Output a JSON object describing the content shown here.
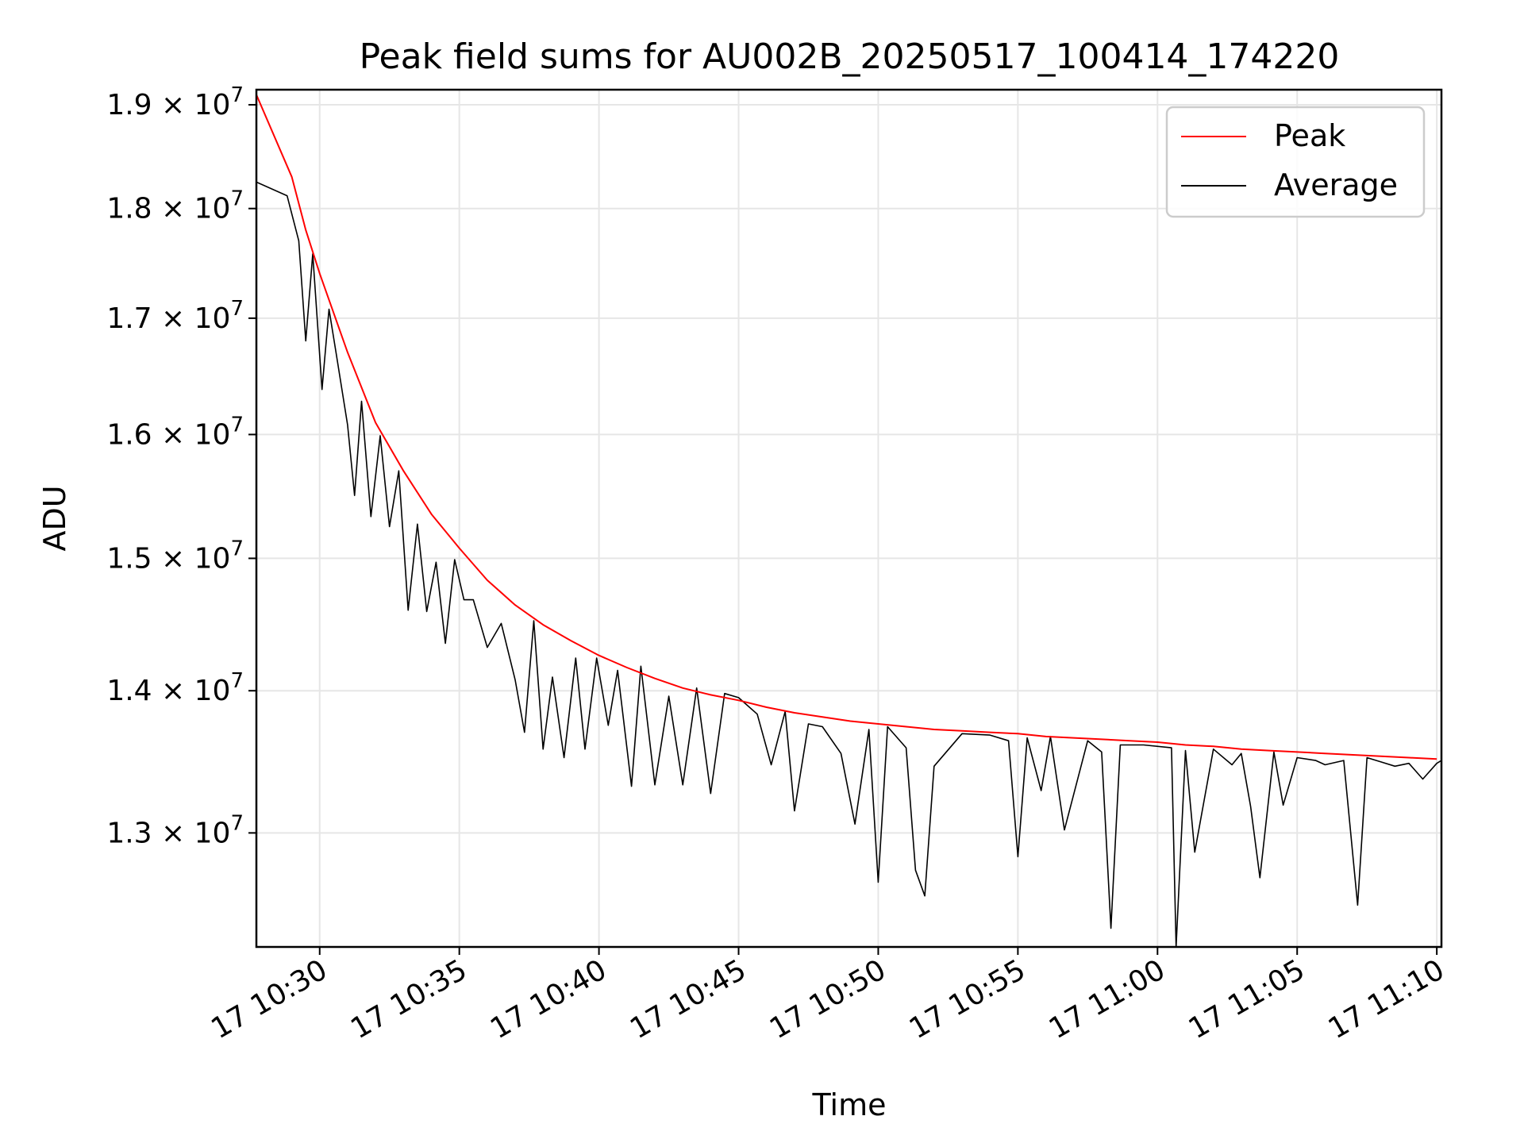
{
  "chart_data": {
    "type": "line",
    "title": "Peak field sums for AU002B_20250517_100414_174220",
    "xlabel": "Time",
    "ylabel": "ADU",
    "xlim": [
      "2025-05-17T10:27:44",
      "2025-05-17T11:10:10"
    ],
    "ylim": [
      12250000,
      19150000
    ],
    "yscale": "log",
    "grid": true,
    "legend_position": "top-right",
    "x_ticks": [
      {
        "value": "2025-05-17T10:30:00",
        "label": "17 10:30"
      },
      {
        "value": "2025-05-17T10:35:00",
        "label": "17 10:35"
      },
      {
        "value": "2025-05-17T10:40:00",
        "label": "17 10:40"
      },
      {
        "value": "2025-05-17T10:45:00",
        "label": "17 10:45"
      },
      {
        "value": "2025-05-17T10:50:00",
        "label": "17 10:50"
      },
      {
        "value": "2025-05-17T10:55:00",
        "label": "17 10:55"
      },
      {
        "value": "2025-05-17T11:00:00",
        "label": "17 11:00"
      },
      {
        "value": "2025-05-17T11:05:00",
        "label": "17 11:05"
      },
      {
        "value": "2025-05-17T11:10:00",
        "label": "17 11:10"
      }
    ],
    "y_ticks": [
      {
        "value": 13000000,
        "mantissa": "1.3",
        "exponent": "7"
      },
      {
        "value": 14000000,
        "mantissa": "1.4",
        "exponent": "7"
      },
      {
        "value": 15000000,
        "mantissa": "1.5",
        "exponent": "7"
      },
      {
        "value": 16000000,
        "mantissa": "1.6",
        "exponent": "7"
      },
      {
        "value": 17000000,
        "mantissa": "1.7",
        "exponent": "7"
      },
      {
        "value": 18000000,
        "mantissa": "1.8",
        "exponent": "7"
      },
      {
        "value": 19000000,
        "mantissa": "1.9",
        "exponent": "7"
      }
    ],
    "series": [
      {
        "name": "Peak",
        "color": "#ff0000",
        "x": [
          "2025-05-17T10:27:44",
          "2025-05-17T10:29:00",
          "2025-05-17T10:29:30",
          "2025-05-17T10:30:00",
          "2025-05-17T10:31:00",
          "2025-05-17T10:32:00",
          "2025-05-17T10:33:00",
          "2025-05-17T10:34:00",
          "2025-05-17T10:35:00",
          "2025-05-17T10:36:00",
          "2025-05-17T10:37:00",
          "2025-05-17T10:38:00",
          "2025-05-17T10:39:00",
          "2025-05-17T10:40:00",
          "2025-05-17T10:41:00",
          "2025-05-17T10:42:00",
          "2025-05-17T10:43:00",
          "2025-05-17T10:44:00",
          "2025-05-17T10:45:00",
          "2025-05-17T10:46:00",
          "2025-05-17T10:47:00",
          "2025-05-17T10:48:00",
          "2025-05-17T10:49:00",
          "2025-05-17T10:50:00",
          "2025-05-17T10:51:00",
          "2025-05-17T10:52:00",
          "2025-05-17T10:53:00",
          "2025-05-17T10:54:00",
          "2025-05-17T10:55:00",
          "2025-05-17T10:56:00",
          "2025-05-17T10:57:00",
          "2025-05-17T10:58:00",
          "2025-05-17T10:59:00",
          "2025-05-17T11:00:00",
          "2025-05-17T11:01:00",
          "2025-05-17T11:02:00",
          "2025-05-17T11:03:00",
          "2025-05-17T11:04:00",
          "2025-05-17T11:05:00",
          "2025-05-17T11:06:00",
          "2025-05-17T11:07:00",
          "2025-05-17T11:08:00",
          "2025-05-17T11:09:00",
          "2025-05-17T11:10:00"
        ],
        "y": [
          19100000,
          18300000,
          17800000,
          17400000,
          16700000,
          16100000,
          15700000,
          15350000,
          15080000,
          14830000,
          14640000,
          14490000,
          14370000,
          14260000,
          14170000,
          14090000,
          14020000,
          13970000,
          13930000,
          13880000,
          13840000,
          13810000,
          13780000,
          13760000,
          13740000,
          13720000,
          13710000,
          13700000,
          13690000,
          13670000,
          13660000,
          13650000,
          13640000,
          13630000,
          13610000,
          13600000,
          13580000,
          13570000,
          13560000,
          13550000,
          13540000,
          13530000,
          13520000,
          13510000
        ]
      },
      {
        "name": "Average",
        "color": "#000000",
        "x": [
          "2025-05-17T10:27:44",
          "2025-05-17T10:28:50",
          "2025-05-17T10:29:15",
          "2025-05-17T10:29:30",
          "2025-05-17T10:29:45",
          "2025-05-17T10:30:05",
          "2025-05-17T10:30:20",
          "2025-05-17T10:30:35",
          "2025-05-17T10:31:00",
          "2025-05-17T10:31:15",
          "2025-05-17T10:31:30",
          "2025-05-17T10:31:50",
          "2025-05-17T10:32:10",
          "2025-05-17T10:32:30",
          "2025-05-17T10:32:50",
          "2025-05-17T10:33:10",
          "2025-05-17T10:33:30",
          "2025-05-17T10:33:50",
          "2025-05-17T10:34:10",
          "2025-05-17T10:34:30",
          "2025-05-17T10:34:50",
          "2025-05-17T10:35:10",
          "2025-05-17T10:35:30",
          "2025-05-17T10:36:00",
          "2025-05-17T10:36:30",
          "2025-05-17T10:37:00",
          "2025-05-17T10:37:20",
          "2025-05-17T10:37:40",
          "2025-05-17T10:38:00",
          "2025-05-17T10:38:20",
          "2025-05-17T10:38:45",
          "2025-05-17T10:39:10",
          "2025-05-17T10:39:30",
          "2025-05-17T10:39:55",
          "2025-05-17T10:40:20",
          "2025-05-17T10:40:40",
          "2025-05-17T10:41:10",
          "2025-05-17T10:41:30",
          "2025-05-17T10:42:00",
          "2025-05-17T10:42:30",
          "2025-05-17T10:43:00",
          "2025-05-17T10:43:30",
          "2025-05-17T10:44:00",
          "2025-05-17T10:44:30",
          "2025-05-17T10:45:00",
          "2025-05-17T10:45:40",
          "2025-05-17T10:46:10",
          "2025-05-17T10:46:40",
          "2025-05-17T10:47:00",
          "2025-05-17T10:47:30",
          "2025-05-17T10:48:00",
          "2025-05-17T10:48:40",
          "2025-05-17T10:49:10",
          "2025-05-17T10:49:40",
          "2025-05-17T10:50:00",
          "2025-05-17T10:50:20",
          "2025-05-17T10:51:00",
          "2025-05-17T10:51:20",
          "2025-05-17T10:51:40",
          "2025-05-17T10:52:00",
          "2025-05-17T10:53:00",
          "2025-05-17T10:54:00",
          "2025-05-17T10:54:40",
          "2025-05-17T10:55:00",
          "2025-05-17T10:55:20",
          "2025-05-17T10:55:50",
          "2025-05-17T10:56:10",
          "2025-05-17T10:56:40",
          "2025-05-17T10:57:30",
          "2025-05-17T10:58:00",
          "2025-05-17T10:58:20",
          "2025-05-17T10:58:40",
          "2025-05-17T10:59:30",
          "2025-05-17T11:00:30",
          "2025-05-17T11:00:40",
          "2025-05-17T11:01:00",
          "2025-05-17T11:01:20",
          "2025-05-17T11:02:00",
          "2025-05-17T11:02:40",
          "2025-05-17T11:03:00",
          "2025-05-17T11:03:20",
          "2025-05-17T11:03:40",
          "2025-05-17T11:04:10",
          "2025-05-17T11:04:30",
          "2025-05-17T11:05:00",
          "2025-05-17T11:05:40",
          "2025-05-17T11:06:00",
          "2025-05-17T11:06:40",
          "2025-05-17T11:07:10",
          "2025-05-17T11:07:30",
          "2025-05-17T11:08:00",
          "2025-05-17T11:08:30",
          "2025-05-17T11:09:00",
          "2025-05-17T11:09:30",
          "2025-05-17T11:10:00",
          "2025-05-17T11:10:10"
        ],
        "y": [
          18250000,
          18120000,
          17700000,
          16800000,
          17580000,
          16380000,
          17080000,
          16700000,
          16080000,
          15500000,
          16280000,
          15330000,
          15990000,
          15250000,
          15700000,
          14600000,
          15270000,
          14590000,
          14970000,
          14350000,
          14990000,
          14680000,
          14680000,
          14320000,
          14500000,
          14080000,
          13700000,
          14520000,
          13580000,
          14100000,
          13520000,
          14240000,
          13580000,
          14240000,
          13750000,
          14150000,
          13320000,
          14180000,
          13330000,
          13960000,
          13330000,
          14020000,
          13270000,
          13980000,
          13950000,
          13830000,
          13470000,
          13850000,
          13150000,
          13760000,
          13740000,
          13550000,
          13060000,
          13720000,
          12670000,
          13740000,
          13590000,
          12750000,
          12580000,
          13460000,
          13690000,
          13680000,
          13640000,
          12840000,
          13660000,
          13290000,
          13670000,
          13020000,
          13640000,
          13560000,
          12370000,
          13610000,
          13610000,
          13590000,
          12250000,
          13570000,
          12870000,
          13580000,
          13470000,
          13550000,
          13180000,
          12700000,
          13560000,
          13190000,
          13520000,
          13500000,
          13470000,
          13500000,
          12520000,
          13520000,
          13490000,
          13460000,
          13480000,
          13370000,
          13480000,
          13500000
        ]
      }
    ]
  }
}
